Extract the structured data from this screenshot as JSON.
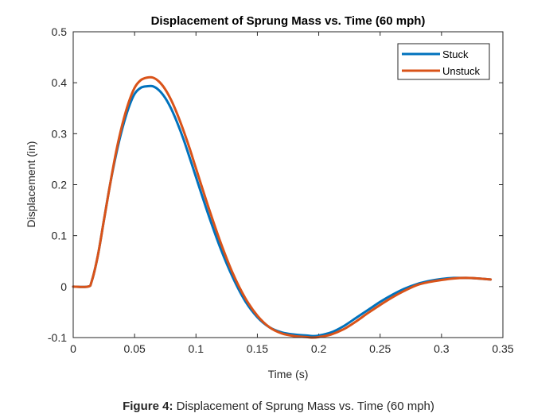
{
  "chart_data": {
    "type": "line",
    "title": "Displacement of Sprung Mass vs. Time (60 mph)",
    "xlabel": "Time (s)",
    "ylabel": "Displacement (in)",
    "xlim": [
      0,
      0.35
    ],
    "ylim": [
      -0.1,
      0.5
    ],
    "xticks": [
      0,
      0.05,
      0.1,
      0.15,
      0.2,
      0.25,
      0.3,
      0.35
    ],
    "xtick_labels": [
      "0",
      "0.05",
      "0.1",
      "0.15",
      "0.2",
      "0.25",
      "0.3",
      "0.35"
    ],
    "yticks": [
      -0.1,
      0,
      0.1,
      0.2,
      0.3,
      0.4,
      0.5
    ],
    "ytick_labels": [
      "-0.1",
      "0",
      "0.1",
      "0.2",
      "0.3",
      "0.4",
      "0.5"
    ],
    "grid": false,
    "legend_position": "top-right",
    "series": [
      {
        "name": "Stuck",
        "color": "#0072BD",
        "x": [
          0,
          0.012,
          0.015,
          0.02,
          0.025,
          0.03,
          0.035,
          0.04,
          0.045,
          0.05,
          0.055,
          0.06,
          0.065,
          0.07,
          0.075,
          0.08,
          0.085,
          0.09,
          0.095,
          0.1,
          0.11,
          0.12,
          0.13,
          0.14,
          0.15,
          0.16,
          0.17,
          0.18,
          0.19,
          0.195,
          0.2,
          0.21,
          0.22,
          0.23,
          0.24,
          0.25,
          0.26,
          0.27,
          0.28,
          0.29,
          0.3,
          0.31,
          0.32,
          0.33,
          0.34
        ],
        "y": [
          0,
          0,
          0.01,
          0.06,
          0.13,
          0.2,
          0.26,
          0.31,
          0.35,
          0.378,
          0.39,
          0.393,
          0.393,
          0.385,
          0.37,
          0.348,
          0.32,
          0.288,
          0.252,
          0.215,
          0.142,
          0.075,
          0.018,
          -0.028,
          -0.06,
          -0.08,
          -0.09,
          -0.094,
          -0.096,
          -0.097,
          -0.096,
          -0.09,
          -0.078,
          -0.062,
          -0.046,
          -0.03,
          -0.016,
          -0.004,
          0.005,
          0.011,
          0.015,
          0.017,
          0.017,
          0.016,
          0.014
        ]
      },
      {
        "name": "Unstuck",
        "color": "#D95319",
        "x": [
          0,
          0.012,
          0.015,
          0.02,
          0.025,
          0.03,
          0.035,
          0.04,
          0.045,
          0.05,
          0.055,
          0.06,
          0.065,
          0.07,
          0.075,
          0.08,
          0.085,
          0.09,
          0.095,
          0.1,
          0.11,
          0.12,
          0.13,
          0.14,
          0.15,
          0.16,
          0.17,
          0.18,
          0.19,
          0.195,
          0.2,
          0.21,
          0.22,
          0.23,
          0.24,
          0.25,
          0.26,
          0.27,
          0.28,
          0.29,
          0.3,
          0.31,
          0.32,
          0.33,
          0.34
        ],
        "y": [
          0,
          0,
          0.01,
          0.06,
          0.13,
          0.2,
          0.265,
          0.318,
          0.36,
          0.39,
          0.405,
          0.41,
          0.41,
          0.402,
          0.387,
          0.365,
          0.337,
          0.305,
          0.27,
          0.232,
          0.157,
          0.087,
          0.026,
          -0.022,
          -0.057,
          -0.08,
          -0.092,
          -0.097,
          -0.099,
          -0.1,
          -0.099,
          -0.094,
          -0.084,
          -0.069,
          -0.052,
          -0.036,
          -0.021,
          -0.008,
          0.003,
          0.009,
          0.013,
          0.016,
          0.017,
          0.016,
          0.014
        ]
      }
    ]
  },
  "caption": {
    "label": "Figure 4:",
    "text": " Displacement of Sprung Mass vs. Time (60 mph)"
  }
}
